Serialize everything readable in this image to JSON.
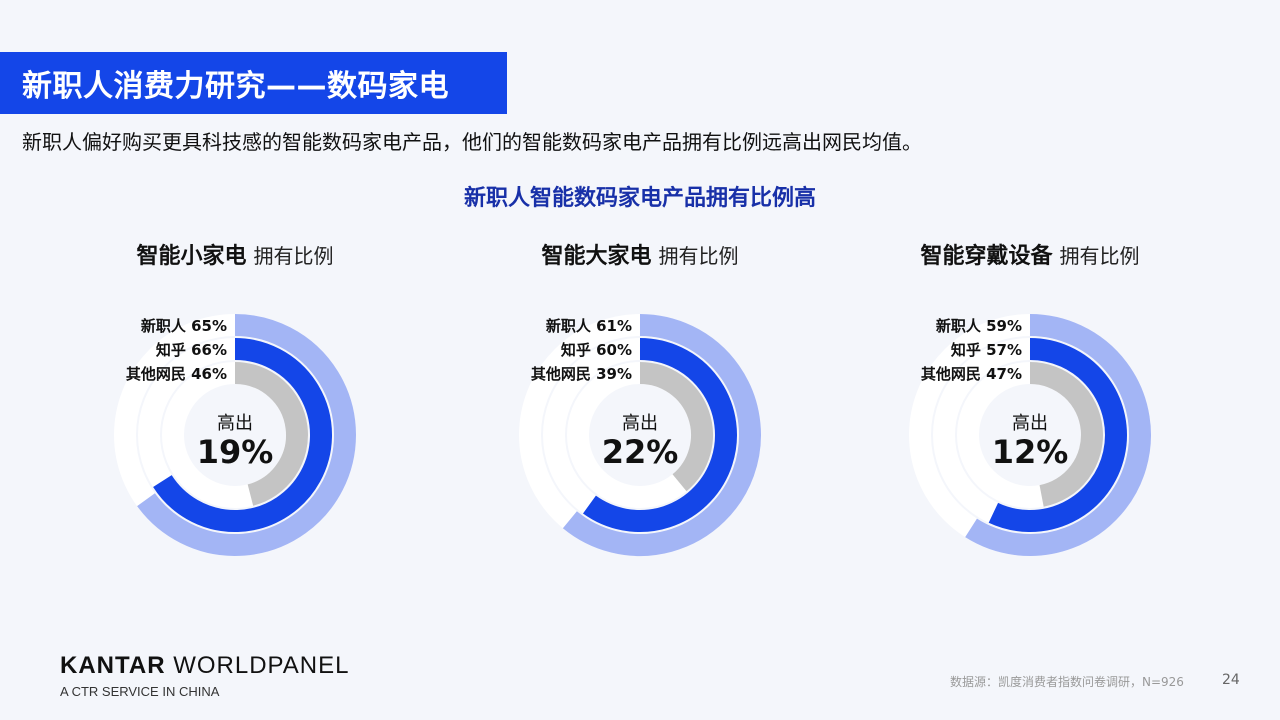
{
  "header": {
    "title": "新职人消费力研究——数码家电",
    "subtitle": "新职人偏好购买更具科技感的智能数码家电产品，他们的智能数码家电产品拥有比例远高出网民均值。"
  },
  "section_title": "新职人智能数码家电产品拥有比例高",
  "colors": {
    "new_workers": "#a3b5f5",
    "zhihu": "#1446e8",
    "other_netizens": "#c4c4c4",
    "track": "#ffffff",
    "title_bg": "#1446e8"
  },
  "chart_data": [
    {
      "type": "donut",
      "title_bold": "智能小家电",
      "title_light": "拥有比例",
      "center_label": "高出",
      "center_value": "19%",
      "series": [
        {
          "name": "新职人",
          "value": 65,
          "label": "65%"
        },
        {
          "name": "知乎",
          "value": 66,
          "label": "66%"
        },
        {
          "name": "其他网民",
          "value": 46,
          "label": "46%"
        }
      ]
    },
    {
      "type": "donut",
      "title_bold": "智能大家电",
      "title_light": "拥有比例",
      "center_label": "高出",
      "center_value": "22%",
      "series": [
        {
          "name": "新职人",
          "value": 61,
          "label": "61%"
        },
        {
          "name": "知乎",
          "value": 60,
          "label": "60%"
        },
        {
          "name": "其他网民",
          "value": 39,
          "label": "39%"
        }
      ]
    },
    {
      "type": "donut",
      "title_bold": "智能穿戴设备",
      "title_light": "拥有比例",
      "center_label": "高出",
      "center_value": "12%",
      "series": [
        {
          "name": "新职人",
          "value": 59,
          "label": "59%"
        },
        {
          "name": "知乎",
          "value": 57,
          "label": "57%"
        },
        {
          "name": "其他网民",
          "value": 47,
          "label": "47%"
        }
      ]
    }
  ],
  "footer": {
    "logo_part1": "KANTAR",
    "logo_part2": " WORLDPANEL",
    "tagline": "A CTR SERVICE IN CHINA",
    "source": "数据源：凯度消费者指数问卷调研，N=926",
    "page_number": "24"
  }
}
